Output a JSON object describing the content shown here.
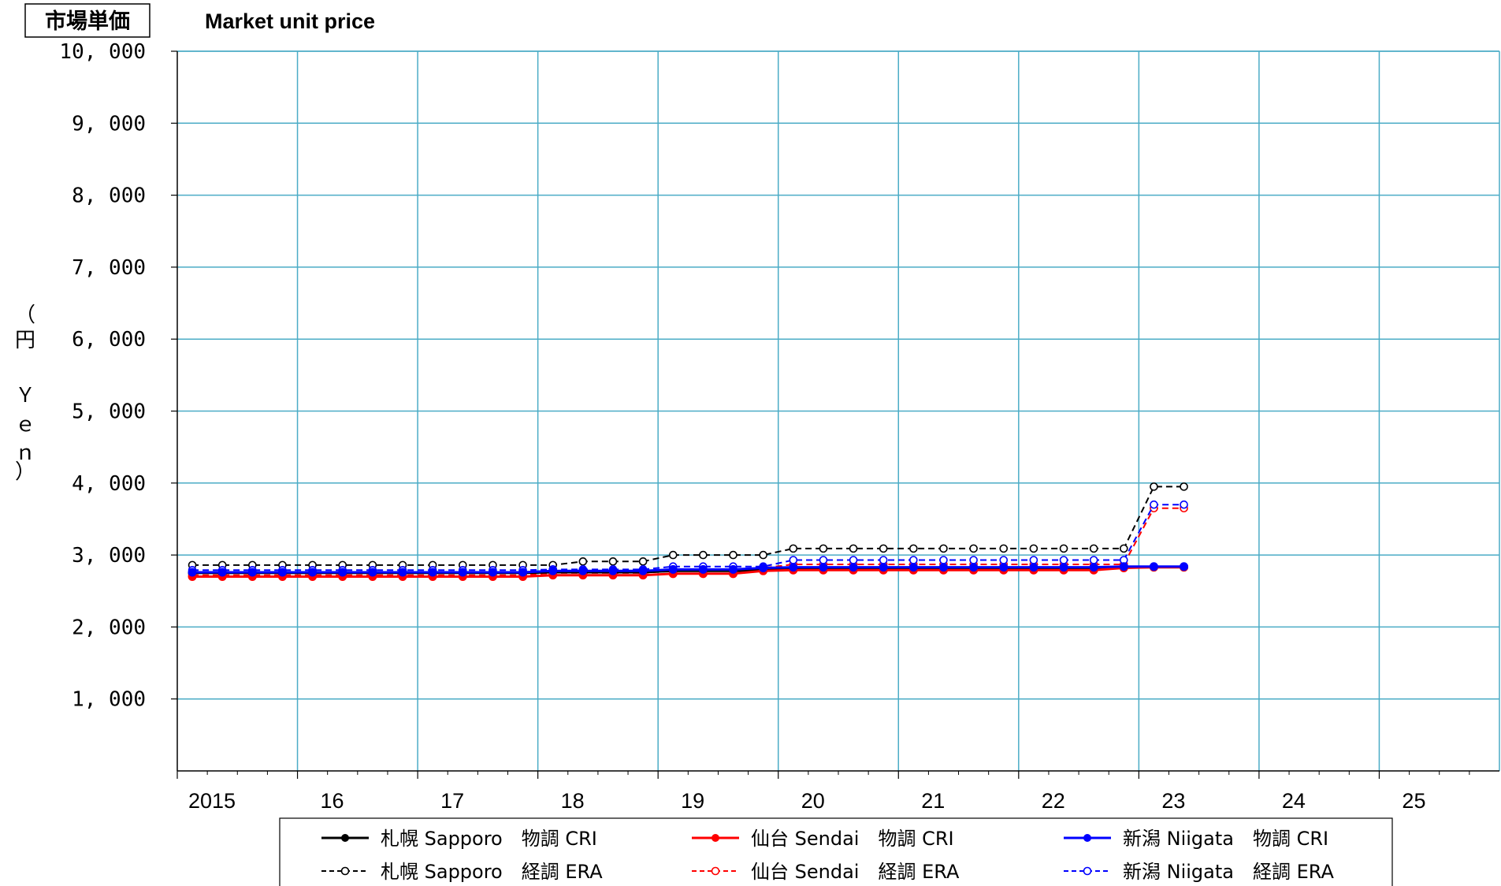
{
  "chart_data": {
    "type": "line",
    "title_box": "市場単価",
    "title": "Market unit price",
    "ylabel_chars": [
      "（",
      "円",
      "",
      "Ｙ",
      "ｅ",
      "ｎ",
      "）"
    ],
    "y_ticks": [
      "1, 000",
      "2, 000",
      "3, 000",
      "4, 000",
      "5, 000",
      "6, 000",
      "7, 000",
      "8, 000",
      "9, 000",
      "10, 000"
    ],
    "x_ticks": [
      "2015",
      "16",
      "17",
      "18",
      "19",
      "20",
      "21",
      "22",
      "23",
      "24",
      "25"
    ],
    "ylim": [
      0,
      10000
    ],
    "xlim": [
      2015,
      2026
    ],
    "grid": true,
    "legend_position": "bottom",
    "colors": {
      "black": "#000000",
      "red": "#ff0000",
      "blue": "#0000ff",
      "grid": "#4bacc6"
    },
    "series": [
      {
        "name": "札幌 Sapporo　物調 CRI",
        "color": "#000000",
        "style": "solid",
        "marker": "filled",
        "x": [
          2015.125,
          2015.375,
          2015.625,
          2015.875,
          2016.125,
          2016.375,
          2016.625,
          2016.875,
          2017.125,
          2017.375,
          2017.625,
          2017.875,
          2018.125,
          2018.375,
          2018.625,
          2018.875,
          2019.125,
          2019.375,
          2019.625,
          2019.875,
          2020.125,
          2020.375,
          2020.625,
          2020.875,
          2021.125,
          2021.375,
          2021.625,
          2021.875,
          2022.125,
          2022.375,
          2022.625,
          2022.875,
          2023.125,
          2023.375
        ],
        "y": [
          2750,
          2750,
          2750,
          2750,
          2750,
          2750,
          2750,
          2750,
          2750,
          2750,
          2750,
          2750,
          2760,
          2760,
          2760,
          2760,
          2780,
          2780,
          2780,
          2790,
          2800,
          2800,
          2800,
          2800,
          2800,
          2800,
          2800,
          2800,
          2800,
          2800,
          2800,
          2830,
          2830,
          2830
        ]
      },
      {
        "name": "仙台 Sendai　物調 CRI",
        "color": "#ff0000",
        "style": "solid",
        "marker": "filled",
        "x": [
          2015.125,
          2015.375,
          2015.625,
          2015.875,
          2016.125,
          2016.375,
          2016.625,
          2016.875,
          2017.125,
          2017.375,
          2017.625,
          2017.875,
          2018.125,
          2018.375,
          2018.625,
          2018.875,
          2019.125,
          2019.375,
          2019.625,
          2019.875,
          2020.125,
          2020.375,
          2020.625,
          2020.875,
          2021.125,
          2021.375,
          2021.625,
          2021.875,
          2022.125,
          2022.375,
          2022.625,
          2022.875,
          2023.125,
          2023.375
        ],
        "y": [
          2700,
          2700,
          2700,
          2700,
          2700,
          2700,
          2700,
          2700,
          2700,
          2700,
          2700,
          2700,
          2720,
          2720,
          2720,
          2720,
          2740,
          2740,
          2740,
          2780,
          2790,
          2790,
          2790,
          2790,
          2790,
          2790,
          2790,
          2790,
          2790,
          2790,
          2790,
          2820,
          2830,
          2830
        ]
      },
      {
        "name": "新潟 Niigata　物調 CRI",
        "color": "#0000ff",
        "style": "solid",
        "marker": "filled",
        "x": [
          2015.125,
          2015.375,
          2015.625,
          2015.875,
          2016.125,
          2016.375,
          2016.625,
          2016.875,
          2017.125,
          2017.375,
          2017.625,
          2017.875,
          2018.125,
          2018.375,
          2018.625,
          2018.875,
          2019.125,
          2019.375,
          2019.625,
          2019.875,
          2020.125,
          2020.375,
          2020.625,
          2020.875,
          2021.125,
          2021.375,
          2021.625,
          2021.875,
          2022.125,
          2022.375,
          2022.625,
          2022.875,
          2023.125,
          2023.375
        ],
        "y": [
          2760,
          2760,
          2760,
          2760,
          2760,
          2760,
          2760,
          2760,
          2760,
          2760,
          2760,
          2760,
          2780,
          2780,
          2780,
          2780,
          2800,
          2800,
          2800,
          2820,
          2830,
          2830,
          2830,
          2830,
          2830,
          2830,
          2830,
          2830,
          2830,
          2830,
          2830,
          2840,
          2840,
          2840
        ]
      },
      {
        "name": "札幌 Sapporo　経調 ERA",
        "color": "#000000",
        "style": "dashed",
        "marker": "open",
        "x": [
          2015.125,
          2015.375,
          2015.625,
          2015.875,
          2016.125,
          2016.375,
          2016.625,
          2016.875,
          2017.125,
          2017.375,
          2017.625,
          2017.875,
          2018.125,
          2018.375,
          2018.625,
          2018.875,
          2019.125,
          2019.375,
          2019.625,
          2019.875,
          2020.125,
          2020.375,
          2020.625,
          2020.875,
          2021.125,
          2021.375,
          2021.625,
          2021.875,
          2022.125,
          2022.375,
          2022.625,
          2022.875,
          2023.125,
          2023.375
        ],
        "y": [
          2860,
          2860,
          2860,
          2860,
          2860,
          2860,
          2860,
          2860,
          2860,
          2860,
          2860,
          2860,
          2860,
          2910,
          2910,
          2910,
          3000,
          3000,
          3000,
          3000,
          3090,
          3090,
          3090,
          3090,
          3090,
          3090,
          3090,
          3090,
          3090,
          3090,
          3090,
          3090,
          3950,
          3950
        ]
      },
      {
        "name": "仙台 Sendai　経調 ERA",
        "color": "#ff0000",
        "style": "dashed",
        "marker": "open",
        "x": [
          2015.125,
          2015.375,
          2015.625,
          2015.875,
          2016.125,
          2016.375,
          2016.625,
          2016.875,
          2017.125,
          2017.375,
          2017.625,
          2017.875,
          2018.125,
          2018.375,
          2018.625,
          2018.875,
          2019.125,
          2019.375,
          2019.625,
          2019.875,
          2020.125,
          2020.375,
          2020.625,
          2020.875,
          2021.125,
          2021.375,
          2021.625,
          2021.875,
          2022.125,
          2022.375,
          2022.625,
          2022.875,
          2023.125,
          2023.375
        ],
        "y": [
          2720,
          2720,
          2720,
          2720,
          2720,
          2720,
          2720,
          2720,
          2720,
          2720,
          2720,
          2720,
          2750,
          2750,
          2750,
          2750,
          2780,
          2780,
          2780,
          2820,
          2870,
          2870,
          2870,
          2870,
          2870,
          2870,
          2870,
          2870,
          2870,
          2870,
          2870,
          2870,
          3650,
          3650
        ]
      },
      {
        "name": "新潟 Niigata　経調 ERA",
        "color": "#0000ff",
        "style": "dashed",
        "marker": "open",
        "x": [
          2015.125,
          2015.375,
          2015.625,
          2015.875,
          2016.125,
          2016.375,
          2016.625,
          2016.875,
          2017.125,
          2017.375,
          2017.625,
          2017.875,
          2018.125,
          2018.375,
          2018.625,
          2018.875,
          2019.125,
          2019.375,
          2019.625,
          2019.875,
          2020.125,
          2020.375,
          2020.625,
          2020.875,
          2021.125,
          2021.375,
          2021.625,
          2021.875,
          2022.125,
          2022.375,
          2022.625,
          2022.875,
          2023.125,
          2023.375
        ],
        "y": [
          2790,
          2790,
          2790,
          2790,
          2790,
          2790,
          2790,
          2790,
          2790,
          2790,
          2790,
          2790,
          2800,
          2800,
          2800,
          2800,
          2840,
          2840,
          2840,
          2840,
          2930,
          2930,
          2930,
          2930,
          2930,
          2930,
          2930,
          2930,
          2930,
          2930,
          2930,
          2930,
          3700,
          3700
        ]
      }
    ],
    "legend": [
      "札幌 Sapporo　物調 CRI",
      "仙台 Sendai　物調 CRI",
      "新潟 Niigata　物調 CRI",
      "札幌 Sapporo　経調 ERA",
      "仙台 Sendai　経調 ERA",
      "新潟 Niigata　経調 ERA"
    ]
  }
}
